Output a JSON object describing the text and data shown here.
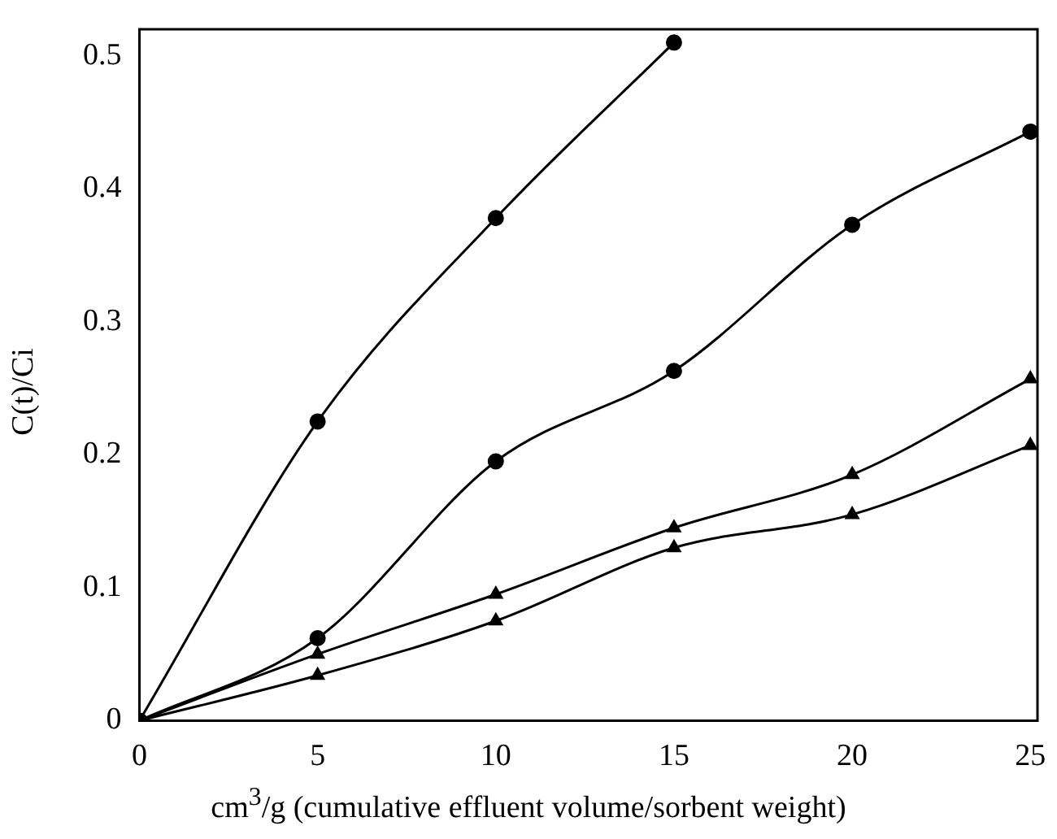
{
  "chart_data": {
    "type": "line",
    "xlabel": "cm$^{3}$/g (cumulative effluent volume/sorbent weight)",
    "ylabel": "C(t)/Ci",
    "xlim": [
      0,
      25.2
    ],
    "ylim": [
      0,
      0.52
    ],
    "xticks": [
      0,
      5,
      10,
      15,
      20,
      25
    ],
    "yticks": [
      0,
      0.1,
      0.2,
      0.3,
      0.4,
      0.5
    ],
    "grid": false,
    "legend": false,
    "line_style": "solid",
    "series": [
      {
        "color": "#000000",
        "marker": "circle",
        "x": [
          0,
          5,
          10,
          15
        ],
        "values": [
          0,
          0.225,
          0.378,
          0.51
        ]
      },
      {
        "color": "#000000",
        "marker": "circle",
        "x": [
          0,
          5,
          10,
          15,
          20,
          25
        ],
        "values": [
          0,
          0.062,
          0.195,
          0.263,
          0.373,
          0.443
        ]
      },
      {
        "color": "#000000",
        "marker": "triangle",
        "x": [
          0,
          5,
          10,
          15,
          20,
          25
        ],
        "values": [
          0,
          0.05,
          0.095,
          0.145,
          0.185,
          0.257
        ]
      },
      {
        "color": "#000000",
        "marker": "triangle",
        "x": [
          0,
          5,
          10,
          15,
          20,
          25
        ],
        "values": [
          0,
          0.034,
          0.075,
          0.13,
          0.155,
          0.207
        ]
      }
    ]
  }
}
